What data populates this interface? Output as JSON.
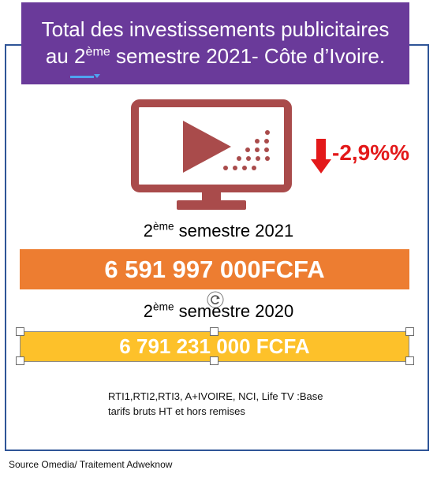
{
  "title": {
    "line1": "Total des investissements publicitaires",
    "line2_prefix": "au 2",
    "line2_sup": "ème",
    "line2_suffix": " semestre 2021- Côte d’Ivoire."
  },
  "icons": {
    "main": "tv-play-icon",
    "trend": "down-arrow-icon",
    "rotate": "rotate-icon"
  },
  "change": {
    "text": "-2,9%%",
    "value_percent": -2.9
  },
  "period_2021": {
    "label_prefix": "2",
    "label_sup": "ème",
    "label_suffix": " semestre 2021",
    "amount": "6 591 997 000FCFA"
  },
  "period_2020": {
    "label_prefix": "2",
    "label_sup": "ème",
    "label_suffix": " semestre 2020",
    "amount": "6 791 231 000 FCFA"
  },
  "note": {
    "line1": "RTI1,RTI2,RTI3, A+IVOIRE, NCI, Life TV :Base",
    "line2": "tarifs bruts HT et hors remises"
  },
  "source": "Source Omedia/ Traitement Adweknow",
  "colors": {
    "title_bg": "#6a3a9a",
    "tv_icon": "#a94b4b",
    "negative": "#e3191a",
    "bar_2021": "#ed7d31",
    "bar_2020": "#fdc12a",
    "frame": "#2f5597"
  }
}
